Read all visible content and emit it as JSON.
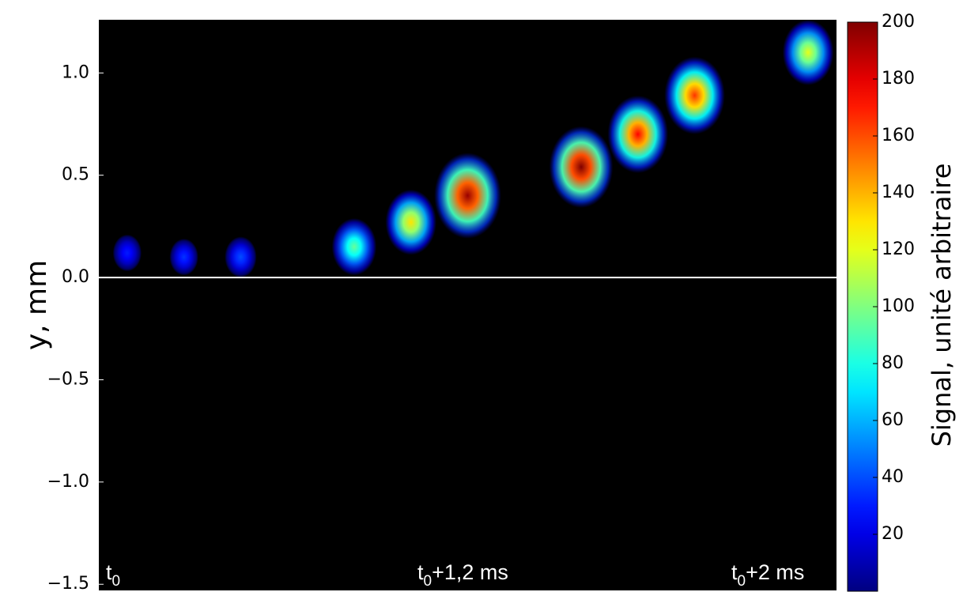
{
  "chart_data": {
    "type": "image",
    "ylabel": "y, mm",
    "ylim": [
      -1.53,
      1.26
    ],
    "yticks": [
      {
        "value": -1.5,
        "label": "−1.5"
      },
      {
        "value": -1.0,
        "label": "−1.0"
      },
      {
        "value": -0.5,
        "label": "−0.5"
      },
      {
        "value": 0.0,
        "label": "0.0"
      },
      {
        "value": 0.5,
        "label": "0.5"
      },
      {
        "value": 1.0,
        "label": "1.0"
      }
    ],
    "colorbar": {
      "label": "Signal, unité  arbitraire",
      "lim": [
        0,
        200
      ],
      "ticks": [
        20,
        40,
        60,
        80,
        100,
        120,
        140,
        160,
        180,
        200
      ],
      "colormap": "jet"
    },
    "frames": 13,
    "spots": [
      {
        "frame": 0,
        "y": 0.12,
        "r": 0.09,
        "peak": 30
      },
      {
        "frame": 1,
        "y": 0.1,
        "r": 0.09,
        "peak": 35
      },
      {
        "frame": 2,
        "y": 0.1,
        "r": 0.1,
        "peak": 40
      },
      {
        "frame": 4,
        "y": 0.15,
        "r": 0.14,
        "peak": 95
      },
      {
        "frame": 5,
        "y": 0.27,
        "r": 0.16,
        "peak": 130
      },
      {
        "frame": 6,
        "y": 0.4,
        "r": 0.21,
        "peak": 195
      },
      {
        "frame": 8,
        "y": 0.54,
        "r": 0.2,
        "peak": 200
      },
      {
        "frame": 9,
        "y": 0.7,
        "r": 0.19,
        "peak": 175
      },
      {
        "frame": 10,
        "y": 0.89,
        "r": 0.19,
        "peak": 165
      },
      {
        "frame": 12,
        "y": 1.1,
        "r": 0.16,
        "peak": 120
      }
    ],
    "annotations": [
      [
        "t",
        "0"
      ],
      [
        "t",
        "0",
        "+1,2 ms"
      ],
      [
        "t",
        "0",
        "+2 ms"
      ]
    ]
  }
}
